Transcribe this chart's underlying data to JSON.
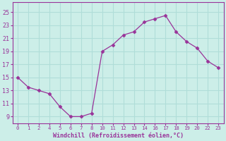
{
  "x_indices": [
    0,
    1,
    2,
    3,
    4,
    5,
    6,
    7,
    8,
    9,
    10,
    11,
    12,
    13,
    14,
    15,
    16,
    17,
    18,
    19
  ],
  "y": [
    15,
    13.5,
    13,
    12.5,
    10.5,
    9,
    9,
    9.5,
    19,
    20,
    21.5,
    22,
    23.5,
    24,
    24.5,
    22,
    20.5,
    19.5,
    17.5,
    16.5
  ],
  "xtick_labels": [
    "0",
    "1",
    "2",
    "4",
    "5",
    "6",
    "7",
    "8",
    "10",
    "11",
    "12",
    "13",
    "14",
    "16",
    "17",
    "18",
    "19",
    "20",
    "22",
    "23"
  ],
  "line_color": "#993399",
  "marker": "D",
  "marker_size": 2.5,
  "bg_color": "#cceee8",
  "grid_color": "#b0ddd8",
  "xlabel": "Windchill (Refroidissement éolien,°C)",
  "xlabel_color": "#993399",
  "tick_color": "#993399",
  "yticks": [
    9,
    11,
    13,
    15,
    17,
    19,
    21,
    23,
    25
  ],
  "ylim": [
    8.0,
    26.5
  ],
  "xlim": [
    -0.5,
    19.5
  ]
}
